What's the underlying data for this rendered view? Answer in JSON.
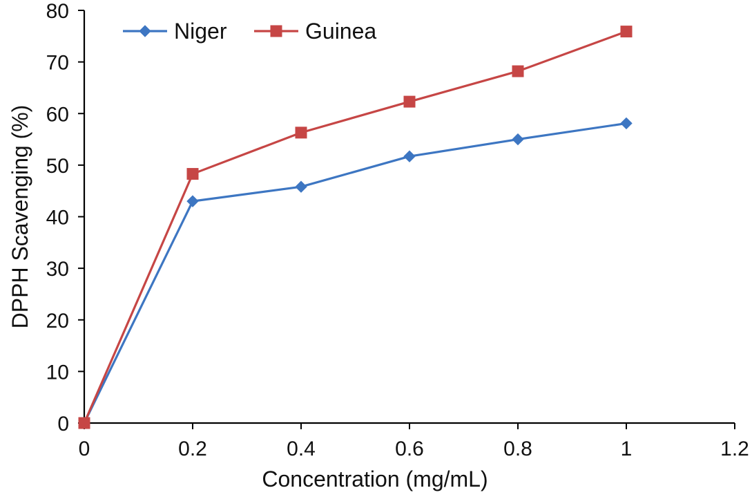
{
  "chart_data": {
    "type": "line",
    "xlabel": "Concentration (mg/mL)",
    "ylabel": "DPPH Scavenging (%)",
    "xlim": [
      0,
      1.2
    ],
    "ylim": [
      0,
      80
    ],
    "x_ticks": [
      0,
      0.2,
      0.4,
      0.6,
      0.8,
      1,
      1.2
    ],
    "x_tick_labels": [
      "0",
      "0.2",
      "0.4",
      "0.6",
      "0.8",
      "1",
      "1.2"
    ],
    "y_ticks": [
      0,
      10,
      20,
      30,
      40,
      50,
      60,
      70,
      80
    ],
    "y_tick_labels": [
      "0",
      "10",
      "20",
      "30",
      "40",
      "50",
      "60",
      "70",
      "80"
    ],
    "grid": false,
    "legend_position": "top-left",
    "series": [
      {
        "name": "Niger",
        "color": "#3d76c2",
        "marker": "diamond",
        "x": [
          0,
          0.2,
          0.4,
          0.6,
          0.8,
          1
        ],
        "y": [
          0,
          43,
          45.8,
          51.7,
          55,
          58.1
        ]
      },
      {
        "name": "Guinea",
        "color": "#c64645",
        "marker": "square",
        "x": [
          0,
          0.2,
          0.4,
          0.6,
          0.8,
          1
        ],
        "y": [
          0,
          48.3,
          56.3,
          62.3,
          68.2,
          75.9
        ]
      }
    ]
  }
}
